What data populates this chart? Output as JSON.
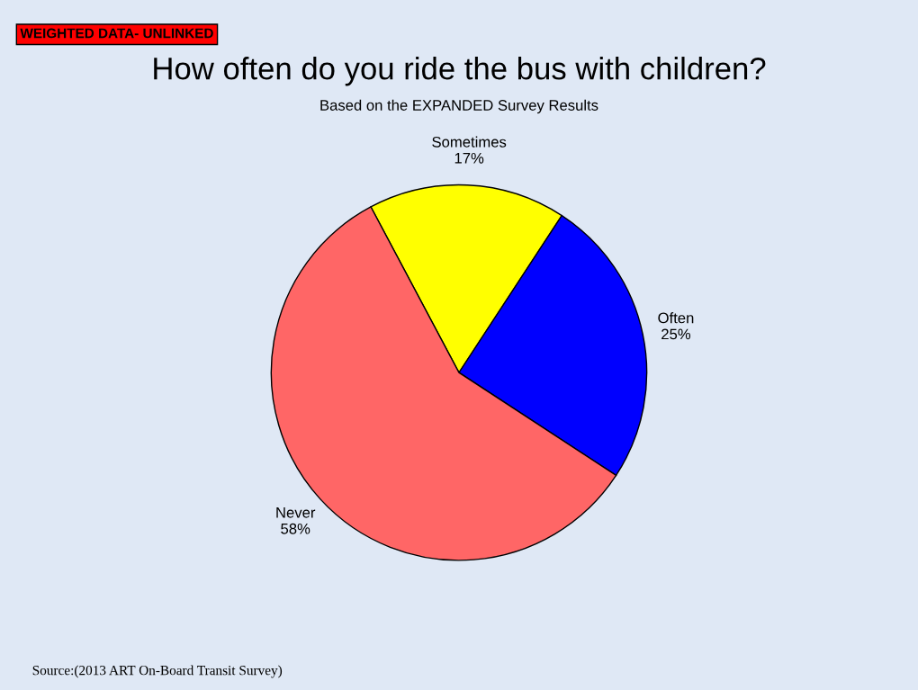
{
  "chart_data": {
    "type": "pie",
    "title": "How often do you ride the bus with children?",
    "subtitle": "Based on the EXPANDED Survey Results",
    "categories": [
      "Sometimes",
      "Often",
      "Never"
    ],
    "values": [
      17,
      25,
      58
    ],
    "value_labels": [
      "17%",
      "25%",
      "58%"
    ],
    "colors": [
      "#ffff00",
      "#0000ff",
      "#ff6666"
    ],
    "annotations": [
      "WEIGHTED DATA- UNLINKED",
      "Source:(2013 ART On-Board Transit Survey)"
    ]
  }
}
